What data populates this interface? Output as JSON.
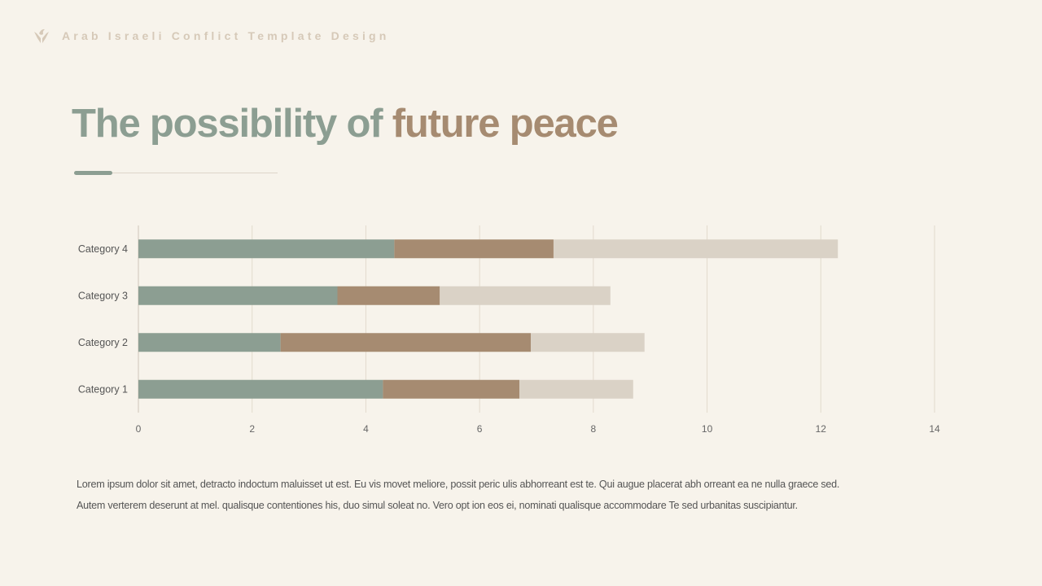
{
  "header": {
    "brand": "Arab Israeli Conflict Template Design",
    "logo_icon": "hands-dove-icon"
  },
  "title": {
    "part1": "The possibility of",
    "part2": "future peace"
  },
  "colors": {
    "background": "#f7f3eb",
    "accent_green": "#8c9e92",
    "accent_brown": "#a68b71",
    "light": "#dad2c6"
  },
  "chart_data": {
    "type": "bar",
    "orientation": "horizontal",
    "stacked": true,
    "categories": [
      "Category 1",
      "Category 2",
      "Category 3",
      "Category 4"
    ],
    "series": [
      {
        "values": [
          4.3,
          2.5,
          3.5,
          4.5
        ],
        "color": "#8c9e92"
      },
      {
        "values": [
          2.4,
          4.4,
          1.8,
          2.8
        ],
        "color": "#a68b71"
      },
      {
        "values": [
          2,
          2,
          3,
          5
        ],
        "color": "#dad2c6"
      }
    ],
    "xlim": [
      0,
      14
    ],
    "xticks": [
      "0",
      "2",
      "4",
      "6",
      "8",
      "10",
      "12",
      "14"
    ],
    "grid": true,
    "legend": "none"
  },
  "body": {
    "line1": "Lorem ipsum dolor sit amet, detracto indoctum maluisset ut est. Eu vis movet meliore, possit peric ulis abhorreant est te. Qui augue placerat abh orreant ea ne nulla graece sed.",
    "line2": "Autem verterem deserunt at mel. qualisque contentiones his, duo simul soleat no. Vero opt ion eos ei, nominati qualisque accommodare Te sed urbanitas suscipiantur."
  }
}
